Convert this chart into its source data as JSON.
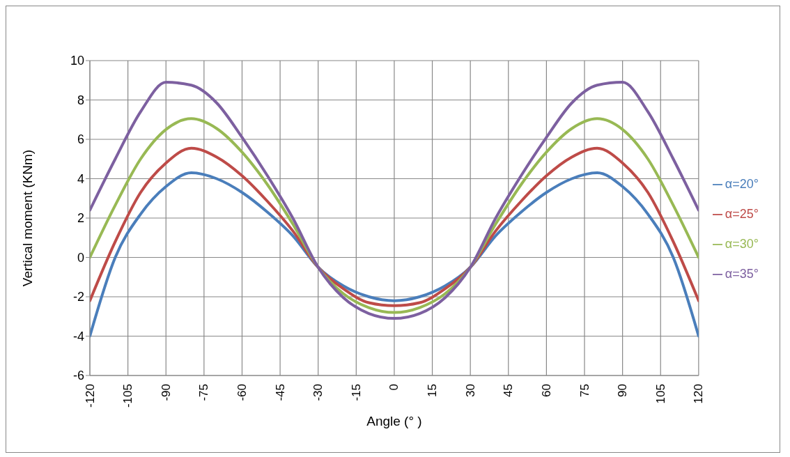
{
  "chart_data": {
    "type": "line",
    "xlabel": "Angle (° )",
    "ylabel": "Vertical moment (KNm)",
    "x": [
      -120,
      -110,
      -100,
      -90,
      -80,
      -70,
      -60,
      -50,
      -40,
      -30,
      -20,
      -10,
      0,
      10,
      20,
      30,
      40,
      50,
      60,
      70,
      80,
      90,
      100,
      110,
      120
    ],
    "series": [
      {
        "name": "α=20°",
        "color": "#4a7ebb",
        "values": [
          -4.0,
          0.0,
          2.2,
          3.6,
          4.3,
          4.0,
          3.3,
          2.3,
          1.1,
          -0.5,
          -1.45,
          -2.0,
          -2.2,
          -2.0,
          -1.45,
          -0.5,
          1.1,
          2.3,
          3.3,
          4.0,
          4.3,
          3.6,
          2.2,
          0.0,
          -4.0
        ]
      },
      {
        "name": "α=25°",
        "color": "#be4b48",
        "values": [
          -2.2,
          0.8,
          3.3,
          4.8,
          5.55,
          5.1,
          4.15,
          2.85,
          1.35,
          -0.5,
          -1.6,
          -2.3,
          -2.45,
          -2.3,
          -1.6,
          -0.5,
          1.35,
          2.85,
          4.15,
          5.1,
          5.55,
          4.8,
          3.3,
          0.8,
          -2.2
        ]
      },
      {
        "name": "α=30°",
        "color": "#98b954",
        "values": [
          0.0,
          2.65,
          5.0,
          6.5,
          7.05,
          6.55,
          5.35,
          3.7,
          1.7,
          -0.5,
          -1.85,
          -2.55,
          -2.8,
          -2.55,
          -1.85,
          -0.5,
          1.7,
          3.7,
          5.35,
          6.55,
          7.05,
          6.5,
          5.0,
          2.65,
          0.0
        ]
      },
      {
        "name": "α=35°",
        "color": "#7d60a0",
        "values": [
          2.4,
          5.0,
          7.4,
          8.9,
          8.75,
          7.85,
          6.1,
          4.15,
          2.0,
          -0.5,
          -2.05,
          -2.85,
          -3.1,
          -2.85,
          -2.05,
          -0.5,
          2.0,
          4.15,
          6.1,
          7.85,
          8.75,
          8.9,
          7.4,
          5.0,
          2.4
        ]
      }
    ],
    "xlim": [
      -120,
      120
    ],
    "xticks": [
      -120,
      -105,
      -90,
      -75,
      -60,
      -45,
      -30,
      -15,
      0,
      15,
      30,
      45,
      60,
      75,
      90,
      105,
      120
    ],
    "ylim": [
      -6,
      10
    ],
    "yticks": [
      -6,
      -4,
      -2,
      0,
      2,
      4,
      6,
      8,
      10
    ],
    "grid": true,
    "legend": "right",
    "marker": "none",
    "line_style": "solid"
  }
}
